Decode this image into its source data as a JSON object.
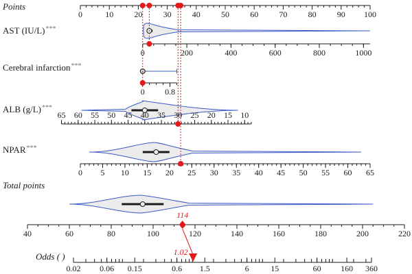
{
  "chart_data": {
    "type": "nomogram",
    "points_axis": {
      "label": "Points",
      "ticks": [
        0,
        10,
        20,
        30,
        40,
        50,
        60,
        70,
        80,
        90,
        100
      ]
    },
    "predictors": [
      {
        "key": "ast",
        "label": "AST (IU/L)",
        "significance": "***",
        "ticks": [
          {
            "value": 0,
            "label": "0"
          },
          {
            "value": 200,
            "label": "200"
          },
          {
            "value": 400,
            "label": "400"
          },
          {
            "value": 600,
            "label": "600"
          },
          {
            "value": 800,
            "label": "800"
          },
          {
            "value": 1000,
            "label": "1000"
          }
        ],
        "axis_range": [
          0,
          1030
        ],
        "points_range": [
          21.5,
          100
        ],
        "distribution": {
          "type": "violin",
          "median": 30,
          "iqr": [
            20,
            45
          ],
          "range": [
            0,
            1030
          ]
        },
        "patient_value": 30,
        "patient_points": 24.8
      },
      {
        "key": "cerebral_infarction",
        "label": "Cerebral infarction",
        "significance": "***",
        "ticks": [
          {
            "value": 0,
            "label": "0"
          },
          {
            "value": 0.8,
            "label": "0.8"
          }
        ],
        "axis_range": [
          0,
          1
        ],
        "points_range": [
          21.5,
          33.3
        ],
        "distribution": {
          "type": "box",
          "median": 0,
          "range": [
            0,
            1
          ]
        },
        "patient_value": 0,
        "patient_points": 21.5
      },
      {
        "key": "alb",
        "label": "ALB (g/L)",
        "significance": "***",
        "ticks": [
          {
            "value": 65,
            "label": "65"
          },
          {
            "value": 60,
            "label": "60"
          },
          {
            "value": 55,
            "label": "55"
          },
          {
            "value": 50,
            "label": "50"
          },
          {
            "value": 45,
            "label": "45"
          },
          {
            "value": 40,
            "label": "40"
          },
          {
            "value": 35,
            "label": "35"
          },
          {
            "value": 30,
            "label": "30"
          },
          {
            "value": 25,
            "label": "25"
          },
          {
            "value": 20,
            "label": "20"
          },
          {
            "value": 15,
            "label": "15"
          },
          {
            "value": 10,
            "label": "10"
          }
        ],
        "axis_range": [
          65,
          8
        ],
        "points_range": [
          -6.5,
          59
        ],
        "distribution": {
          "type": "violin",
          "median": 40,
          "iqr": [
            36,
            44
          ],
          "range": [
            12,
            59
          ]
        },
        "patient_value": 30,
        "patient_points": 33.7
      },
      {
        "key": "npar",
        "label": "NPAR",
        "significance": "***",
        "ticks": [
          {
            "value": 0,
            "label": "0"
          },
          {
            "value": 5,
            "label": "5"
          },
          {
            "value": 10,
            "label": "10"
          },
          {
            "value": 15,
            "label": "15"
          },
          {
            "value": 20,
            "label": "20"
          },
          {
            "value": 25,
            "label": "25"
          },
          {
            "value": 30,
            "label": "30"
          },
          {
            "value": 35,
            "label": "35"
          },
          {
            "value": 40,
            "label": "40"
          },
          {
            "value": 45,
            "label": "45"
          },
          {
            "value": 50,
            "label": "50"
          },
          {
            "value": 55,
            "label": "55"
          },
          {
            "value": 60,
            "label": "60"
          },
          {
            "value": 65,
            "label": "65"
          }
        ],
        "axis_range": [
          0,
          65
        ],
        "points_range": [
          0,
          100
        ],
        "distribution": {
          "type": "violin",
          "median": 17,
          "iqr": [
            14,
            20
          ],
          "range": [
            2,
            63
          ]
        },
        "patient_value": 22.5,
        "patient_points": 34.6
      }
    ],
    "total_points": {
      "label": "Total points",
      "ticks": [
        40,
        60,
        80,
        100,
        120,
        140,
        160,
        180,
        200,
        220
      ],
      "axis_range": [
        40,
        220
      ],
      "distribution": {
        "type": "violin",
        "median": 95,
        "iqr": [
          85,
          105
        ],
        "range": [
          60,
          205
        ]
      },
      "value": 114,
      "value_label": "114"
    },
    "odds": {
      "label": "Odds ( )",
      "ticks": [
        {
          "value": 0.02,
          "label": "0.02"
        },
        {
          "value": 0.06,
          "label": "0.06"
        },
        {
          "value": 0.15,
          "label": "0.15"
        },
        {
          "value": 0.6,
          "label": "0.6"
        },
        {
          "value": 1.5,
          "label": "1.5"
        },
        {
          "value": 6,
          "label": "6"
        },
        {
          "value": 15,
          "label": "15"
        },
        {
          "value": 60,
          "label": "60"
        },
        {
          "value": 160,
          "label": "160"
        },
        {
          "value": 360,
          "label": "360"
        }
      ],
      "scale": "log",
      "value": 1.02,
      "value_label": "1.02"
    },
    "colors": {
      "violin_stroke": "#3a5bc7",
      "violin_fill": "#ececec",
      "highlight": "#e31a1c",
      "axis": "#1a1a1a"
    }
  }
}
